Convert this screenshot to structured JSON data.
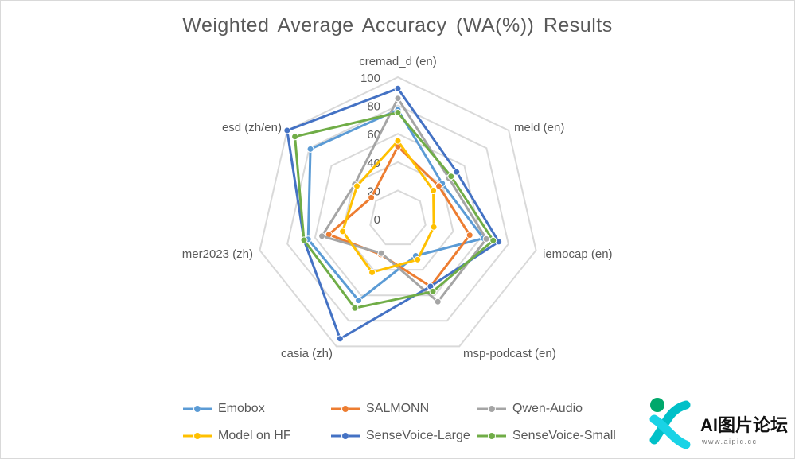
{
  "chart_data": {
    "type": "radar",
    "title": "Weighted Average Accuracy (WA(%)) Results",
    "axes": [
      "cremad_d (en)",
      "meld (en)",
      "iemocap (en)",
      "msp-podcast (en)",
      "casia (zh)",
      "mer2023 (zh)",
      "esd  (zh/en)"
    ],
    "r_ticks": [
      "0",
      "20",
      "40",
      "60",
      "80",
      "100"
    ],
    "r_range": [
      0,
      100
    ],
    "grid": true,
    "legend_position": "bottom",
    "series": [
      {
        "name": "Emobox",
        "color": "#5b9bd5",
        "values": [
          77,
          40,
          62,
          29,
          64,
          65,
          79
        ]
      },
      {
        "name": "SALMONN",
        "color": "#ed7d31",
        "values": [
          51,
          37,
          52,
          53,
          28,
          50,
          24
        ]
      },
      {
        "name": "Qwen-Audio",
        "color": "#a5a5a5",
        "values": [
          85,
          46,
          64,
          65,
          27,
          55,
          39
        ]
      },
      {
        "name": "Model on HF",
        "color": "#ffc000",
        "values": [
          55,
          32,
          26,
          32,
          42,
          40,
          37
        ]
      },
      {
        "name": "SenseVoice-Large",
        "color": "#4472c4",
        "values": [
          92,
          53,
          73,
          53,
          94,
          68,
          100
        ]
      },
      {
        "name": "SenseVoice-Small",
        "color": "#70ad47",
        "values": [
          75,
          48,
          69,
          57,
          70,
          68,
          93
        ]
      }
    ]
  },
  "watermark": {
    "text": "AI图片论坛",
    "url": "www.aipic.cc"
  }
}
